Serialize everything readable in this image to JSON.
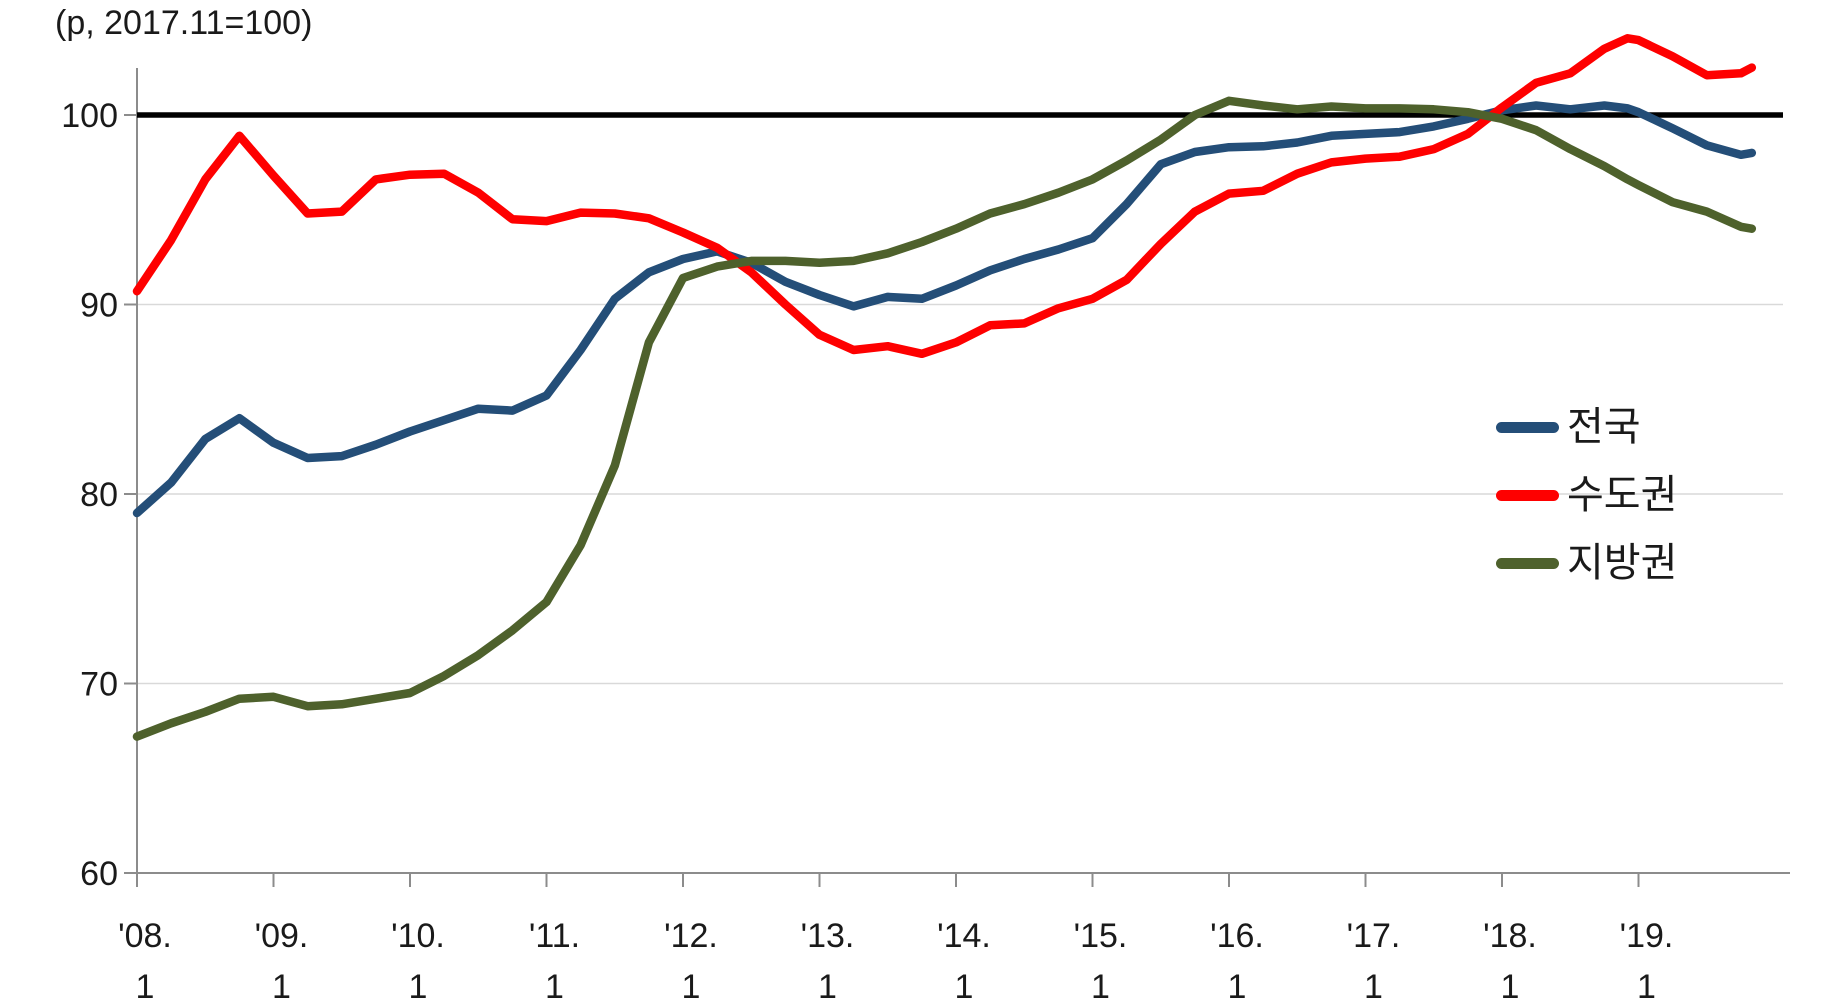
{
  "chart_data": {
    "type": "line",
    "title": "(p, 2017.11=100)",
    "ylabel": "",
    "xlabel": "",
    "ylim": [
      60,
      104.7
    ],
    "xlim_years": [
      2008.0,
      2020.06
    ],
    "grid": "horizontal-light",
    "y_ticks": [
      100,
      90,
      80,
      70,
      60
    ],
    "x_ticks": [
      {
        "top": "'08.",
        "bottom": "1"
      },
      {
        "top": "'09.",
        "bottom": "1"
      },
      {
        "top": "'10.",
        "bottom": "1"
      },
      {
        "top": "'11.",
        "bottom": "1"
      },
      {
        "top": "'12.",
        "bottom": "1"
      },
      {
        "top": "'13.",
        "bottom": "1"
      },
      {
        "top": "'14.",
        "bottom": "1"
      },
      {
        "top": "'15.",
        "bottom": "1"
      },
      {
        "top": "'16.",
        "bottom": "1"
      },
      {
        "top": "'17.",
        "bottom": "1"
      },
      {
        "top": "'18.",
        "bottom": "1"
      },
      {
        "top": "'19.",
        "bottom": "1"
      }
    ],
    "reference_line": {
      "value": 100,
      "color": "#000000"
    },
    "x": [
      2008.0,
      2008.25,
      2008.5,
      2008.75,
      2009.0,
      2009.25,
      2009.5,
      2009.75,
      2010.0,
      2010.25,
      2010.5,
      2010.75,
      2011.0,
      2011.25,
      2011.5,
      2011.75,
      2012.0,
      2012.25,
      2012.5,
      2012.75,
      2013.0,
      2013.25,
      2013.5,
      2013.75,
      2014.0,
      2014.25,
      2014.5,
      2014.75,
      2015.0,
      2015.25,
      2015.5,
      2015.75,
      2016.0,
      2016.25,
      2016.5,
      2016.75,
      2017.0,
      2017.25,
      2017.5,
      2017.75,
      2018.0,
      2018.25,
      2018.5,
      2018.75,
      2018.92,
      2019.0,
      2019.25,
      2019.5,
      2019.75,
      2019.83
    ],
    "series": [
      {
        "name": "전국",
        "color": "#244E78",
        "values": [
          79.0,
          80.6,
          82.9,
          84.0,
          82.7,
          81.9,
          82.0,
          82.6,
          83.3,
          83.9,
          84.5,
          84.4,
          85.2,
          87.6,
          90.3,
          91.7,
          92.4,
          92.8,
          92.2,
          91.2,
          90.5,
          89.9,
          90.4,
          90.3,
          91.0,
          91.8,
          92.4,
          92.9,
          93.5,
          95.3,
          97.4,
          98.05,
          98.3,
          98.35,
          98.55,
          98.9,
          99.0,
          99.1,
          99.4,
          99.8,
          100.25,
          100.5,
          100.3,
          100.5,
          100.35,
          100.15,
          99.3,
          98.4,
          97.9,
          98.0
        ]
      },
      {
        "name": "수도권",
        "color": "#FE0000",
        "values": [
          90.7,
          93.4,
          96.6,
          98.9,
          96.8,
          94.8,
          94.9,
          96.6,
          96.85,
          96.9,
          95.9,
          94.5,
          94.4,
          94.85,
          94.8,
          94.55,
          93.8,
          93.0,
          91.7,
          90.0,
          88.4,
          87.6,
          87.8,
          87.4,
          88.0,
          88.9,
          89.0,
          89.8,
          90.3,
          91.3,
          93.2,
          94.9,
          95.85,
          96.0,
          96.9,
          97.5,
          97.7,
          97.8,
          98.2,
          99.0,
          100.4,
          101.7,
          102.2,
          103.5,
          104.05,
          103.95,
          103.1,
          102.1,
          102.2,
          102.5
        ]
      },
      {
        "name": "지방권",
        "color": "#4E612C",
        "values": [
          67.2,
          67.9,
          68.5,
          69.2,
          69.3,
          68.8,
          68.9,
          69.2,
          69.5,
          70.4,
          71.5,
          72.8,
          74.3,
          77.3,
          81.5,
          88.0,
          91.4,
          92.0,
          92.3,
          92.3,
          92.2,
          92.3,
          92.7,
          93.3,
          94.0,
          94.8,
          95.3,
          95.9,
          96.6,
          97.6,
          98.7,
          100.0,
          100.75,
          100.5,
          100.3,
          100.45,
          100.35,
          100.35,
          100.3,
          100.15,
          99.8,
          99.2,
          98.2,
          97.3,
          96.6,
          96.3,
          95.4,
          94.9,
          94.1,
          94.0
        ]
      }
    ],
    "legend": {
      "position": "right-middle",
      "items": [
        "전국",
        "수도권",
        "지방권"
      ]
    },
    "colors": {
      "axis": "#8C8C8C",
      "grid": "#D9D9D9",
      "text": "#1A1A1A",
      "reference": "#000000",
      "background": "#FFFFFF"
    }
  }
}
